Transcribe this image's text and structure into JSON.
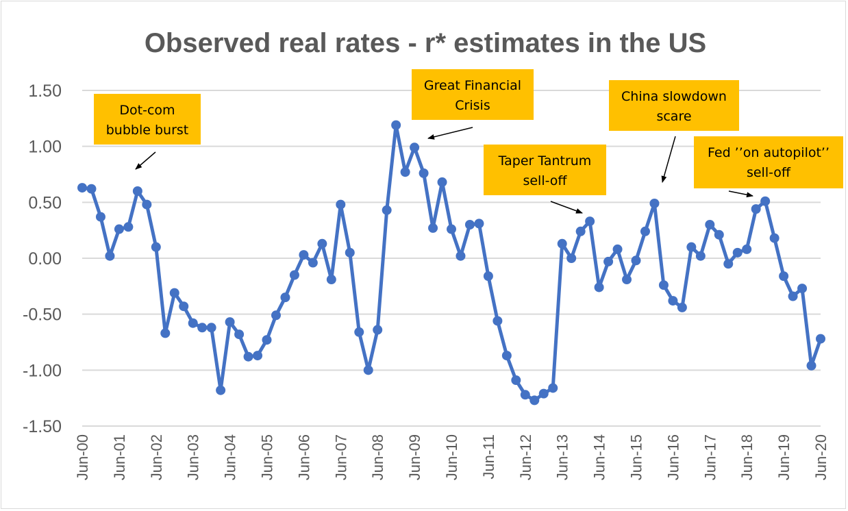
{
  "chart_data": {
    "type": "line",
    "title": "Observed real rates - r* estimates in the US",
    "xlabel": "",
    "ylabel": "",
    "ylim": [
      -1.5,
      1.5
    ],
    "y_ticks": [
      1.5,
      1.0,
      0.5,
      0.0,
      -0.5,
      -1.0,
      -1.5
    ],
    "y_tick_labels": [
      "1.50",
      "1.00",
      "0.50",
      "0.00",
      "-0.50",
      "-1.00",
      "-1.50"
    ],
    "x_tick_labels": [
      "Jun-00",
      "Jun-01",
      "Jun-02",
      "Jun-03",
      "Jun-04",
      "Jun-05",
      "Jun-06",
      "Jun-07",
      "Jun-08",
      "Jun-09",
      "Jun-10",
      "Jun-11",
      "Jun-12",
      "Jun-13",
      "Jun-14",
      "Jun-15",
      "Jun-16",
      "Jun-17",
      "Jun-18",
      "Jun-19",
      "Jun-20"
    ],
    "x_start": "Jun-00",
    "x_end": "Jun-20",
    "frequency": "quarterly",
    "grid": true,
    "legend": "none",
    "line_color": "#4472c4",
    "series": [
      {
        "values": [
          0.63,
          0.62,
          0.37,
          0.02,
          0.26,
          0.28,
          0.6,
          0.48,
          0.1,
          -0.67,
          -0.31,
          -0.43,
          -0.58,
          -0.62,
          -0.62,
          -1.18,
          -0.57,
          -0.68,
          -0.88,
          -0.87,
          -0.73,
          -0.51,
          -0.35,
          -0.15,
          0.03,
          -0.04,
          0.13,
          -0.19,
          0.48,
          0.05,
          -0.66,
          -1.0,
          -0.64,
          0.43,
          1.19,
          0.77,
          0.99,
          0.76,
          0.27,
          0.68,
          0.26,
          0.02,
          0.3,
          0.31,
          -0.16,
          -0.56,
          -0.87,
          -1.09,
          -1.22,
          -1.27,
          -1.21,
          -1.16,
          0.13,
          0.0,
          0.24,
          0.33,
          -0.26,
          -0.03,
          0.08,
          -0.19,
          -0.02,
          0.24,
          0.49,
          -0.24,
          -0.38,
          -0.44,
          0.1,
          0.02,
          0.3,
          0.21,
          -0.05,
          0.05,
          0.08,
          0.44,
          0.51,
          0.18,
          -0.16,
          -0.34,
          -0.27,
          -0.96,
          -0.72
        ]
      }
    ],
    "annotations": [
      {
        "lines": [
          "Dot-com",
          "bubble burst"
        ],
        "bg": "#ffc000"
      },
      {
        "lines": [
          "Great Financial",
          "Crisis"
        ],
        "bg": "#ffc000"
      },
      {
        "lines": [
          "Taper Tantrum",
          "sell-off"
        ],
        "bg": "#ffc000"
      },
      {
        "lines": [
          "China slowdown",
          "scare"
        ],
        "bg": "#ffc000"
      },
      {
        "lines": [
          "Fed ’’on autopilot’’",
          "sell-off"
        ],
        "bg": "#ffc000"
      }
    ]
  }
}
